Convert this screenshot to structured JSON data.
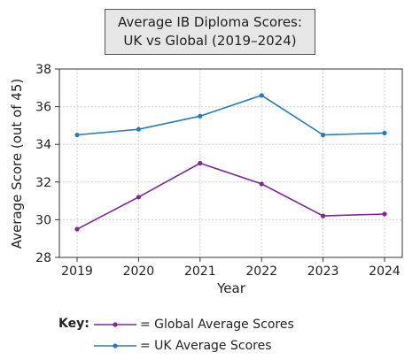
{
  "chart_data": {
    "type": "line",
    "title_lines": [
      "Average IB Diploma Scores:",
      "UK vs Global (2019–2024)"
    ],
    "xlabel": "Year",
    "ylabel": "Average Score (out of 45)",
    "x": [
      "2019",
      "2020",
      "2021",
      "2022",
      "2023",
      "2024"
    ],
    "ylim": [
      28,
      38
    ],
    "yticks": [
      "28",
      "30",
      "32",
      "34",
      "36",
      "38"
    ],
    "grid": true,
    "series": [
      {
        "name": "= Global Average Scores",
        "color": "#7b2a90",
        "values": [
          29.5,
          31.2,
          33.0,
          31.9,
          30.2,
          30.3
        ]
      },
      {
        "name": "= UK Average Scores",
        "color": "#2a7ab8",
        "values": [
          34.5,
          34.8,
          35.5,
          36.6,
          34.5,
          34.6
        ]
      }
    ],
    "legend_title": "Key:",
    "legend_placement": "bottom"
  }
}
